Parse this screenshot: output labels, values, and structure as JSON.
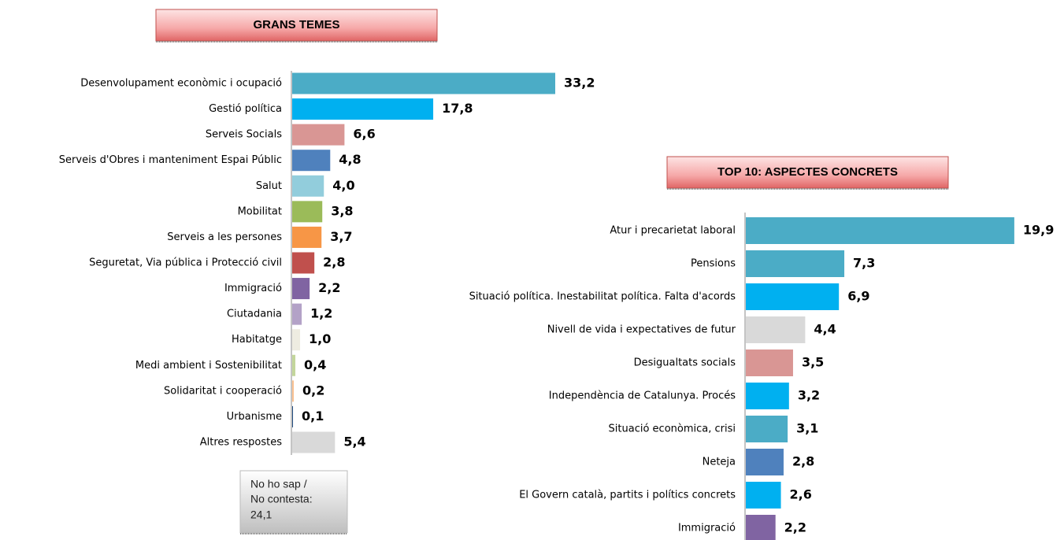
{
  "chart_data": [
    {
      "type": "bar",
      "orientation": "horizontal",
      "title": "GRANS TEMES",
      "categories": [
        "Desenvolupament econòmic i ocupació",
        "Gestió política",
        "Serveis Socials",
        "Serveis d'Obres i manteniment Espai Públic",
        "Salut",
        "Mobilitat",
        "Serveis a les persones",
        "Seguretat, Via pública i Protecció civil",
        "Immigració",
        "Ciutadania",
        "Habitatge",
        "Medi ambient i Sostenibilitat",
        "Solidaritat i cooperació",
        "Urbanisme",
        "Altres respostes"
      ],
      "values": [
        33.2,
        17.8,
        6.6,
        4.8,
        4.0,
        3.8,
        3.7,
        2.8,
        2.2,
        1.2,
        1.0,
        0.4,
        0.2,
        0.1,
        5.4
      ],
      "value_labels": [
        "33,2",
        "17,8",
        "6,6",
        "4,8",
        "4,0",
        "3,8",
        "3,7",
        "2,8",
        "2,2",
        "1,2",
        "1,0",
        "0,4",
        "0,2",
        "0,1",
        "5,4"
      ],
      "colors": [
        "#4bacc6",
        "#00b0f0",
        "#d99694",
        "#4f81bd",
        "#92cddc",
        "#9bbb59",
        "#f79646",
        "#c0504d",
        "#8064a2",
        "#b3a2c7",
        "#eeece1",
        "#c3d69b",
        "#fac090",
        "#1f497d",
        "#d9d9d9"
      ]
    },
    {
      "type": "bar",
      "orientation": "horizontal",
      "title": "TOP 10: ASPECTES CONCRETS",
      "categories": [
        "Atur i precarietat laboral",
        "Pensions",
        "Situació política. Inestabilitat política. Falta d'acords",
        "Nivell de vida i expectatives de futur",
        "Desigualtats socials",
        "Independència de Catalunya. Procés",
        "Situació econòmica, crisi",
        "Neteja",
        "El Govern català, partits i polítics concrets",
        "Immigració"
      ],
      "values": [
        19.9,
        7.3,
        6.9,
        4.4,
        3.5,
        3.2,
        3.1,
        2.8,
        2.6,
        2.2
      ],
      "value_labels": [
        "19,9",
        "7,3",
        "6,9",
        "4,4",
        "3,5",
        "3,2",
        "3,1",
        "2,8",
        "2,6",
        "2,2"
      ],
      "colors": [
        "#4bacc6",
        "#4bacc6",
        "#00b0f0",
        "#d9d9d9",
        "#d99694",
        "#00b0f0",
        "#4bacc6",
        "#4f81bd",
        "#00b0f0",
        "#8064a2"
      ]
    }
  ],
  "note": [
    "No ho sap /",
    "No contesta:",
    "24,1"
  ]
}
